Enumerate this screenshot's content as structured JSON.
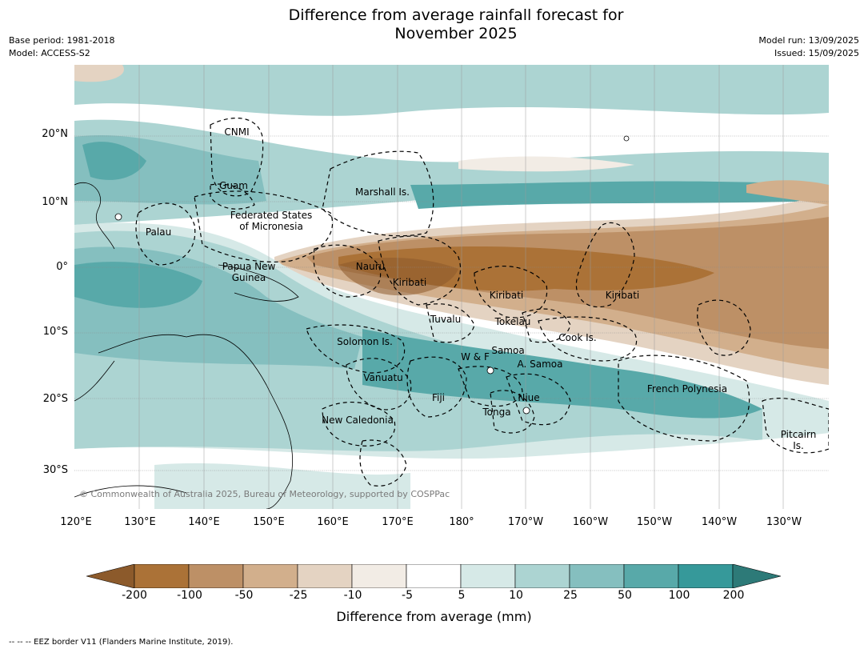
{
  "title_line1": "Difference from average rainfall forecast for",
  "title_line2": "November 2025",
  "meta_left": [
    "Base period: 1981-2018",
    "Model: ACCESS-S2"
  ],
  "meta_right": [
    "Model run: 13/09/2025",
    "Issued: 15/09/2025"
  ],
  "lat_labels": [
    "20°N",
    "10°N",
    "0°",
    "10°S",
    "20°S",
    "30°S"
  ],
  "lon_labels": [
    "120°E",
    "130°E",
    "140°E",
    "150°E",
    "160°E",
    "170°E",
    "180°",
    "170°W",
    "160°W",
    "150°W",
    "140°W",
    "130°W"
  ],
  "regions": [
    {
      "name": "CNMI"
    },
    {
      "name": "Guam"
    },
    {
      "name": "Marshall Is."
    },
    {
      "name": "Federated States\nof Micronesia"
    },
    {
      "name": "Palau"
    },
    {
      "name": "Nauru"
    },
    {
      "name": "Papua New\nGuinea"
    },
    {
      "name": "Kiribati"
    },
    {
      "name": "Kiribati"
    },
    {
      "name": "Kiribati"
    },
    {
      "name": "Tuvalu"
    },
    {
      "name": "Tokelau"
    },
    {
      "name": "Cook Is."
    },
    {
      "name": "Solomon Is."
    },
    {
      "name": "Samoa"
    },
    {
      "name": "W & F"
    },
    {
      "name": "A. Samoa"
    },
    {
      "name": "Vanuatu"
    },
    {
      "name": "Fiji"
    },
    {
      "name": "Niue"
    },
    {
      "name": "French Polynesia"
    },
    {
      "name": "Tonga"
    },
    {
      "name": "New Caledonia"
    },
    {
      "name": "Pitcairn\nIs."
    }
  ],
  "copyright": "© Commonwealth of Australia 2025, Bureau of Meteorology, supported by COSPPac",
  "colorbar": {
    "title": "Difference from average (mm)",
    "ticks": [
      "-200",
      "-100",
      "-50",
      "-25",
      "-10",
      "-5",
      "5",
      "10",
      "25",
      "50",
      "100",
      "200"
    ],
    "colors": [
      "#8c5a2b",
      "#ab7237",
      "#bd9066",
      "#d2af8c",
      "#e4d3c2",
      "#f2ece5",
      "#ffffff",
      "#d6e9e7",
      "#acd4d2",
      "#85bfbf",
      "#58a9a9",
      "#36999a",
      "#2d7a78"
    ]
  },
  "footnote": "--  --  -- EEZ border V11 (Flanders Marine Institute, 2019)."
}
